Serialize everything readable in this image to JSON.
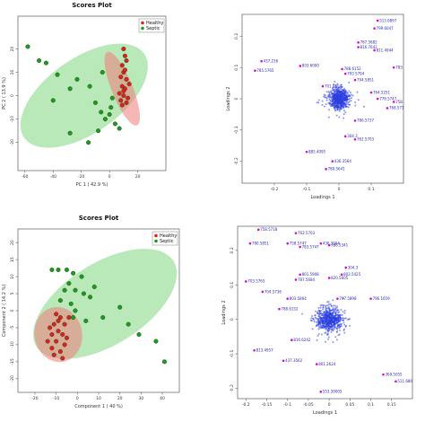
{
  "chart_data": [
    {
      "type": "scatter",
      "title": "Scores Plot",
      "xlabel": "PC 1 ( 42.9 %)",
      "ylabel": "PC 2 ( 13.9 %)",
      "xlim": [
        -65,
        40
      ],
      "ylim": [
        -32,
        34
      ],
      "xticks": [
        -60,
        -40,
        -20,
        0,
        20
      ],
      "yticks": [
        -20,
        -10,
        0,
        10,
        20
      ],
      "legend_position": "top-right",
      "grid": false,
      "series": [
        {
          "name": "Healthy",
          "color": "#e0201c",
          "points": [
            [
              10,
              20
            ],
            [
              11,
              17
            ],
            [
              12,
              15
            ],
            [
              9,
              13
            ],
            [
              10,
              10
            ],
            [
              8,
              8
            ],
            [
              12,
              7
            ],
            [
              9,
              4
            ],
            [
              11,
              3
            ],
            [
              10,
              0
            ],
            [
              8,
              -2
            ],
            [
              13,
              -1
            ],
            [
              9,
              -4
            ],
            [
              10,
              2
            ],
            [
              12,
              -3
            ],
            [
              14,
              5
            ],
            [
              7,
              1
            ],
            [
              11,
              11
            ]
          ]
        },
        {
          "name": "Septic",
          "color": "#1e9a1e",
          "points": [
            [
              -58,
              21
            ],
            [
              -50,
              15
            ],
            [
              -45,
              14
            ],
            [
              -37,
              9
            ],
            [
              -40,
              -2
            ],
            [
              -28,
              3
            ],
            [
              -23,
              7
            ],
            [
              -14,
              4
            ],
            [
              -10,
              -3
            ],
            [
              -6,
              -7
            ],
            [
              -3,
              -10
            ],
            [
              2,
              -1
            ],
            [
              0,
              -8
            ],
            [
              4,
              -12
            ],
            [
              -8,
              -15
            ],
            [
              -15,
              -20
            ],
            [
              -28,
              -16
            ],
            [
              1,
              -5
            ],
            [
              7,
              -14
            ],
            [
              -5,
              10
            ]
          ]
        }
      ],
      "ellipses": [
        {
          "series": "Septic",
          "color": "#7fd67f",
          "cx": -18,
          "cy": 0,
          "rx": 52,
          "ry": 16,
          "angle": -35
        },
        {
          "series": "Healthy",
          "color": "#f07c7c",
          "cx": 9,
          "cy": 3,
          "rx": 28,
          "ry": 4.5,
          "angle": 68
        }
      ]
    },
    {
      "type": "scatter",
      "title": "",
      "xlabel": "Loadings 1",
      "ylabel": "Loadings 2",
      "xlim": [
        -0.3,
        0.2
      ],
      "ylim": [
        -0.27,
        0.27
      ],
      "xticks": [
        -0.2,
        -0.1,
        0,
        0.1
      ],
      "yticks": [
        -0.2,
        -0.1,
        0,
        0.1,
        0.2
      ],
      "labels": [
        {
          "x": 0.12,
          "y": 0.25,
          "t": "513.6897"
        },
        {
          "x": 0.11,
          "y": 0.225,
          "t": "799.6047"
        },
        {
          "x": 0.06,
          "y": 0.18,
          "t": "787.5682"
        },
        {
          "x": 0.06,
          "y": 0.165,
          "t": "816.7642"
        },
        {
          "x": 0.11,
          "y": 0.155,
          "t": "811.4944"
        },
        {
          "x": 0.17,
          "y": 0.1,
          "t": "783.5765"
        },
        {
          "x": -0.24,
          "y": 0.12,
          "t": "437.236"
        },
        {
          "x": -0.26,
          "y": 0.09,
          "t": "785.5765"
        },
        {
          "x": -0.12,
          "y": 0.105,
          "t": "803.6000"
        },
        {
          "x": 0.02,
          "y": 0.08,
          "t": "793.5794"
        },
        {
          "x": 0.01,
          "y": 0.095,
          "t": "788.6152"
        },
        {
          "x": 0.05,
          "y": 0.06,
          "t": "794.5851"
        },
        {
          "x": 0.1,
          "y": 0.02,
          "t": "764.5251"
        },
        {
          "x": 0.12,
          "y": 0.0,
          "t": "778.5747"
        },
        {
          "x": 0.17,
          "y": -0.01,
          "t": "758.5861"
        },
        {
          "x": 0.15,
          "y": -0.03,
          "t": "768.5718"
        },
        {
          "x": -0.05,
          "y": 0.04,
          "t": "701.5604"
        },
        {
          "x": 0.05,
          "y": -0.07,
          "t": "786.5737"
        },
        {
          "x": 0.02,
          "y": -0.12,
          "t": "304.3"
        },
        {
          "x": 0.05,
          "y": -0.13,
          "t": "762.5703"
        },
        {
          "x": -0.1,
          "y": -0.17,
          "t": "885.4095"
        },
        {
          "x": -0.02,
          "y": -0.2,
          "t": "436.3564"
        },
        {
          "x": -0.04,
          "y": -0.225,
          "t": "780.5641"
        }
      ]
    },
    {
      "type": "scatter",
      "title": "Scores Plot",
      "xlabel": "Component 1 ( 40 %)",
      "ylabel": "Component 2 ( 14.2 %)",
      "xlim": [
        -28,
        48
      ],
      "ylim": [
        -24,
        24
      ],
      "xticks": [
        -20,
        -10,
        0,
        10,
        20,
        30,
        40
      ],
      "yticks": [
        -20,
        -15,
        -10,
        -5,
        0,
        5,
        10,
        15,
        20
      ],
      "legend_position": "top-right",
      "grid": false,
      "series": [
        {
          "name": "Healthy",
          "color": "#e0201c",
          "points": [
            [
              -10,
              -1
            ],
            [
              -8,
              -2
            ],
            [
              -11,
              -4
            ],
            [
              -13,
              -5
            ],
            [
              -9,
              -6
            ],
            [
              -12,
              -7
            ],
            [
              -7,
              -7
            ],
            [
              -10,
              -9
            ],
            [
              -6,
              -10
            ],
            [
              -12,
              -11
            ],
            [
              -8,
              -12
            ],
            [
              -5,
              -8
            ],
            [
              -9,
              -3
            ],
            [
              -14,
              -9
            ],
            [
              -6,
              -4
            ],
            [
              -11,
              -13
            ],
            [
              -4,
              -2
            ],
            [
              -7,
              -14
            ]
          ]
        },
        {
          "name": "Septic",
          "color": "#1e9a1e",
          "points": [
            [
              -12,
              12
            ],
            [
              -9,
              12
            ],
            [
              -5,
              12
            ],
            [
              -2,
              11
            ],
            [
              2,
              10
            ],
            [
              -4,
              8
            ],
            [
              -6,
              6
            ],
            [
              -1,
              6
            ],
            [
              3,
              5
            ],
            [
              6,
              4
            ],
            [
              -8,
              3
            ],
            [
              -3,
              2
            ],
            [
              -2,
              -2
            ],
            [
              4,
              -3
            ],
            [
              12,
              -2
            ],
            [
              20,
              1
            ],
            [
              24,
              -4
            ],
            [
              29,
              -7
            ],
            [
              37,
              -9
            ],
            [
              41,
              -15
            ],
            [
              8,
              7
            ],
            [
              -1,
              0
            ]
          ]
        }
      ],
      "ellipses": [
        {
          "series": "Septic",
          "color": "#7fd67f",
          "cx": 13,
          "cy": 2,
          "rx": 38,
          "ry": 12,
          "angle": -32
        },
        {
          "series": "Healthy",
          "color": "#f07c7c",
          "cx": -9,
          "cy": -7,
          "rx": 13,
          "ry": 7,
          "angle": 80
        }
      ]
    },
    {
      "type": "scatter",
      "title": "",
      "xlabel": "Loadings 1",
      "ylabel": "Loadings 2",
      "xlim": [
        -0.22,
        0.2
      ],
      "ylim": [
        -0.23,
        0.27
      ],
      "xticks": [
        -0.2,
        -0.15,
        -0.1,
        -0.05,
        0,
        0.05,
        0.1,
        0.15
      ],
      "yticks": [
        -0.2,
        -0.1,
        0,
        0.1,
        0.2
      ],
      "labels": [
        {
          "x": -0.17,
          "y": 0.26,
          "t": "758.5718"
        },
        {
          "x": -0.08,
          "y": 0.25,
          "t": "762.5703"
        },
        {
          "x": -0.19,
          "y": 0.22,
          "t": "780.5851"
        },
        {
          "x": -0.1,
          "y": 0.22,
          "t": "758.5747"
        },
        {
          "x": -0.02,
          "y": 0.22,
          "t": "436.3564"
        },
        {
          "x": 0.0,
          "y": 0.215,
          "t": "786.5341"
        },
        {
          "x": -0.07,
          "y": 0.21,
          "t": "783.5747"
        },
        {
          "x": -0.2,
          "y": 0.11,
          "t": "703.5765"
        },
        {
          "x": -0.16,
          "y": 0.08,
          "t": "704.5736"
        },
        {
          "x": 0.04,
          "y": 0.15,
          "t": "304.3"
        },
        {
          "x": 0.03,
          "y": 0.13,
          "t": "803.5425"
        },
        {
          "x": 0.0,
          "y": 0.12,
          "t": "820.5605"
        },
        {
          "x": -0.07,
          "y": 0.13,
          "t": "801.5908"
        },
        {
          "x": -0.08,
          "y": 0.115,
          "t": "787.5684"
        },
        {
          "x": -0.1,
          "y": 0.06,
          "t": "803.5864"
        },
        {
          "x": 0.02,
          "y": 0.06,
          "t": "797.5898"
        },
        {
          "x": -0.12,
          "y": 0.03,
          "t": "788.6152"
        },
        {
          "x": 0.1,
          "y": 0.06,
          "t": "796.1659"
        },
        {
          "x": -0.09,
          "y": -0.06,
          "t": "816.6242"
        },
        {
          "x": -0.18,
          "y": -0.09,
          "t": "813.4957"
        },
        {
          "x": -0.11,
          "y": -0.12,
          "t": "437.3562"
        },
        {
          "x": -0.03,
          "y": -0.13,
          "t": "801.2624"
        },
        {
          "x": 0.13,
          "y": -0.16,
          "t": "369.5055"
        },
        {
          "x": 0.16,
          "y": -0.18,
          "t": "511.6807"
        },
        {
          "x": -0.02,
          "y": -0.21,
          "t": "553.39005"
        }
      ]
    }
  ]
}
